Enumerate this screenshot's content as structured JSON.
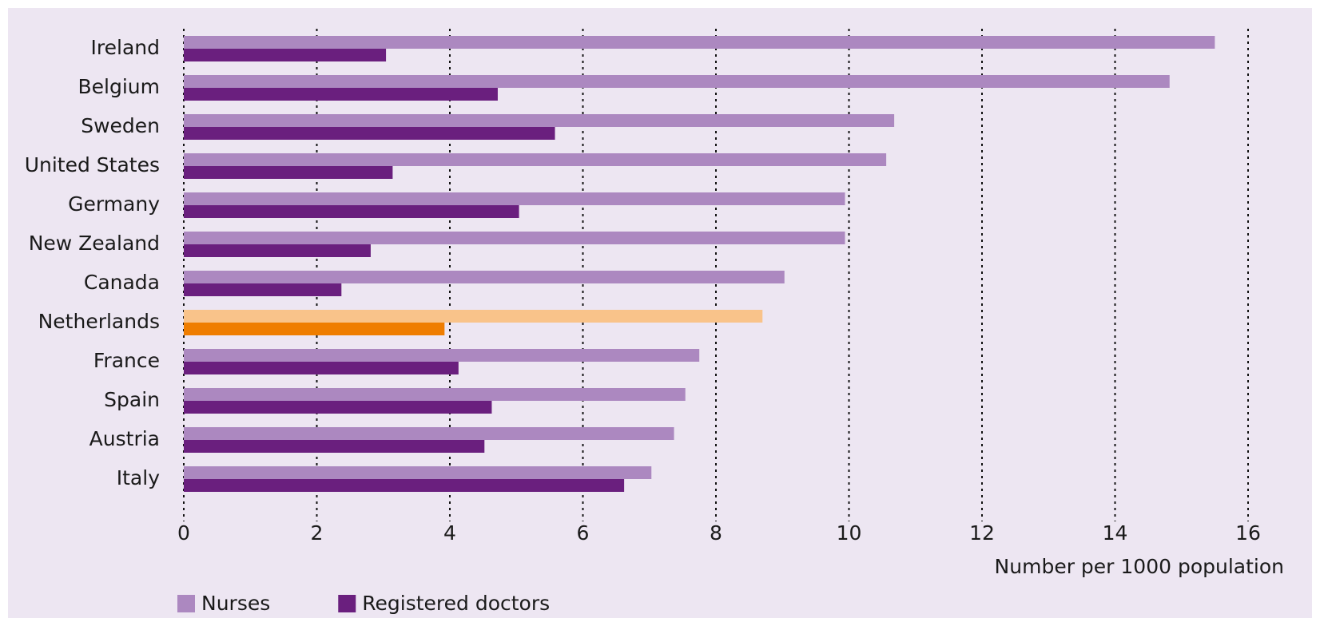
{
  "chart_data": {
    "type": "hbar",
    "categories": [
      "Ireland",
      "Belgium",
      "Sweden",
      "United States",
      "Germany",
      "New Zealand",
      "Canada",
      "Netherlands",
      "France",
      "Spain",
      "Austria",
      "Italy"
    ],
    "series": [
      {
        "name": "Nurses",
        "color": "#ac88c0",
        "values": [
          15.5,
          14.82,
          10.68,
          10.56,
          9.94,
          9.94,
          9.03,
          8.7,
          7.75,
          7.54,
          7.37,
          7.03
        ]
      },
      {
        "name": "Registered doctors",
        "color": "#6a1f7e",
        "values": [
          3.04,
          4.72,
          5.58,
          3.14,
          5.04,
          2.81,
          2.37,
          3.92,
          4.13,
          4.63,
          4.52,
          6.62
        ]
      }
    ],
    "highlight": {
      "index": 7,
      "colors": [
        "#f9c38a",
        "#ef7d00"
      ]
    },
    "xlabel": "Number per 1000 population",
    "xlim": [
      0,
      16
    ],
    "xticks": [
      0,
      2,
      4,
      6,
      8,
      10,
      12,
      14,
      16
    ],
    "grid": true
  }
}
